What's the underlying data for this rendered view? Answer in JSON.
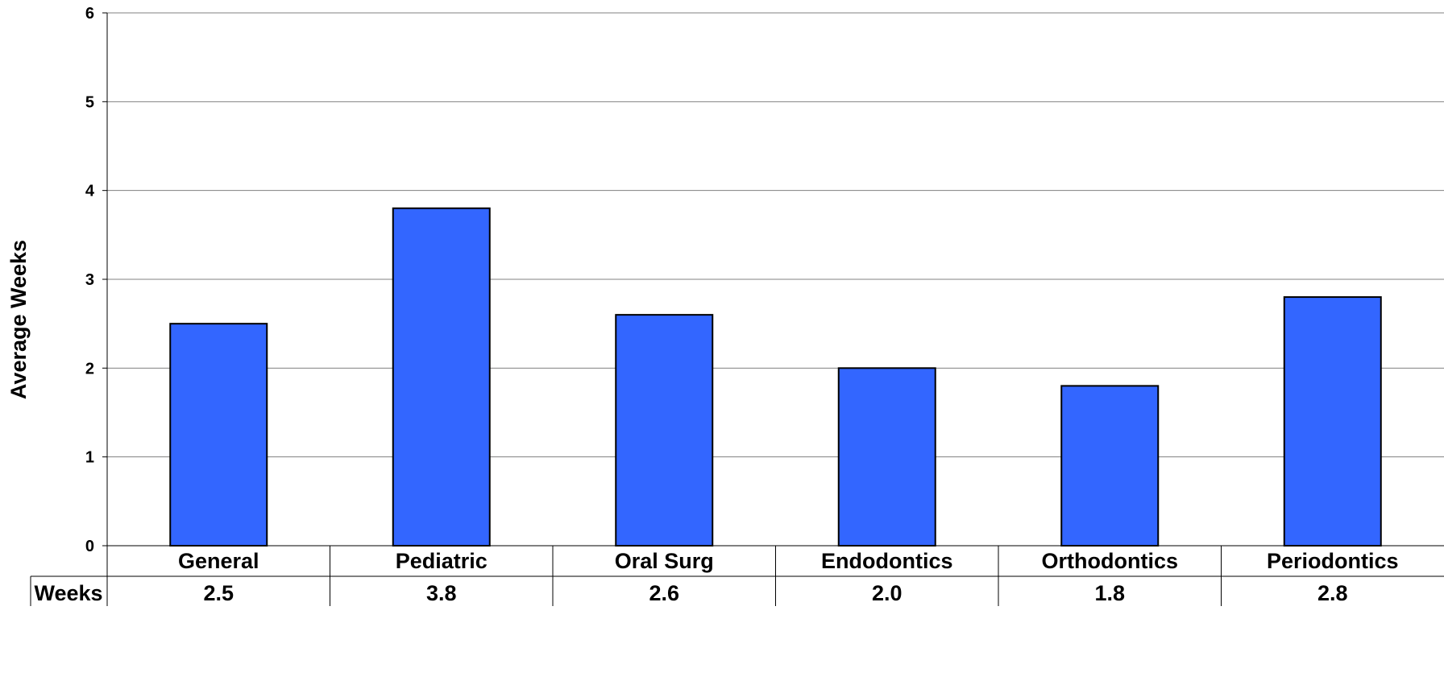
{
  "chart_data": {
    "type": "bar",
    "title": "",
    "xlabel": "",
    "ylabel": "Average Weeks",
    "ylim": [
      0,
      6
    ],
    "yticks": [
      0,
      1,
      2,
      3,
      4,
      5,
      6
    ],
    "grid": true,
    "categories": [
      "General",
      "Pediatric",
      "Oral Surg",
      "Endodontics",
      "Orthodontics",
      "Periodontics"
    ],
    "series": [
      {
        "name": "Weeks",
        "values": [
          2.5,
          3.8,
          2.6,
          2.0,
          1.8,
          2.8
        ],
        "labels": [
          "2.5",
          "3.8",
          "2.6",
          "2.0",
          "1.8",
          "2.8"
        ]
      }
    ],
    "data_table": {
      "row_label": "Weeks"
    },
    "colors": {
      "bar": "#3366FF",
      "bar_border": "#000000",
      "grid": "#808080"
    }
  }
}
